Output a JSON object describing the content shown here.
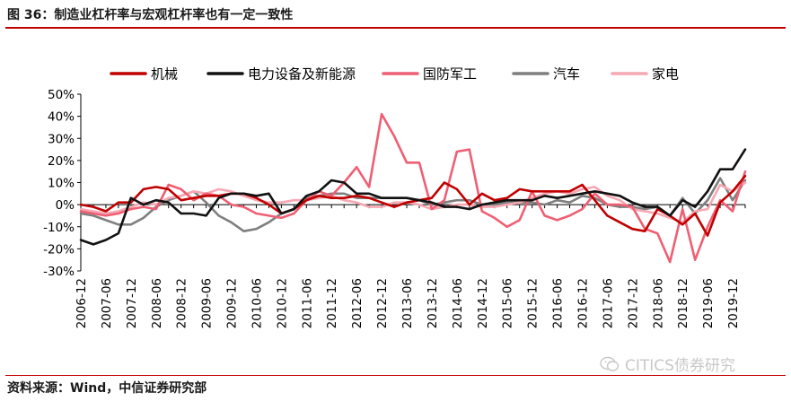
{
  "header": {
    "figure_title": "图 36：制造业杠杆率与宏观杠杆率也有一定一致性"
  },
  "footer": {
    "source": "资料来源：Wind，中信证券研究部",
    "watermark": "CITICS债券研究"
  },
  "colors": {
    "accent": "#c00000",
    "jixie": "#c00000",
    "dianli": "#111111",
    "guofang": "#ef5f73",
    "qiche": "#7f7f7f",
    "jiadian": "#f6a8b3"
  },
  "chart_data": {
    "type": "line",
    "ylim": [
      -30,
      50
    ],
    "y_ticks": [
      -30,
      -20,
      -10,
      0,
      10,
      20,
      30,
      40,
      50
    ],
    "y_tick_labels": [
      "-30%",
      "-20%",
      "-10%",
      "0%",
      "10%",
      "20%",
      "30%",
      "40%",
      "50%"
    ],
    "x_tick_labels": [
      "2006-12",
      "2007-06",
      "2007-12",
      "2008-06",
      "2008-12",
      "2009-06",
      "2009-12",
      "2010-06",
      "2010-12",
      "2011-06",
      "2011-12",
      "2012-06",
      "2012-12",
      "2013-06",
      "2013-12",
      "2014-06",
      "2014-12",
      "2015-06",
      "2015-12",
      "2016-06",
      "2016-12",
      "2017-06",
      "2017-12",
      "2018-06",
      "2018-12",
      "2019-06",
      "2019-12"
    ],
    "x": [
      "2006-12",
      "2007-03",
      "2007-06",
      "2007-09",
      "2007-12",
      "2008-03",
      "2008-06",
      "2008-09",
      "2008-12",
      "2009-03",
      "2009-06",
      "2009-09",
      "2009-12",
      "2010-03",
      "2010-06",
      "2010-09",
      "2010-12",
      "2011-03",
      "2011-06",
      "2011-09",
      "2011-12",
      "2012-03",
      "2012-06",
      "2012-09",
      "2012-12",
      "2013-03",
      "2013-06",
      "2013-09",
      "2013-12",
      "2014-03",
      "2014-06",
      "2014-09",
      "2014-12",
      "2015-03",
      "2015-06",
      "2015-09",
      "2015-12",
      "2016-03",
      "2016-06",
      "2016-09",
      "2016-12",
      "2017-03",
      "2017-06",
      "2017-09",
      "2017-12",
      "2018-03",
      "2018-06",
      "2018-09",
      "2018-12",
      "2019-03",
      "2019-06",
      "2019-09",
      "2019-12",
      "2020-03"
    ],
    "legend_position": "top",
    "grid": false,
    "series": [
      {
        "name": "机械",
        "color_key": "jixie",
        "values": [
          0,
          -1,
          -3,
          1,
          1,
          7,
          8,
          7,
          2,
          3,
          4,
          4,
          5,
          5,
          3,
          0,
          -4,
          -2,
          2,
          4,
          3,
          3,
          4,
          3,
          1,
          -1,
          1,
          2,
          3,
          10,
          7,
          0,
          5,
          2,
          3,
          7,
          6,
          6,
          6,
          6,
          9,
          2,
          -5,
          -8,
          -11,
          -12,
          -2,
          -5,
          -9,
          -4,
          -14,
          1,
          6,
          13
        ]
      },
      {
        "name": "电力设备及新能源",
        "color_key": "dianli",
        "values": [
          -16,
          -18,
          -16,
          -13,
          3,
          0,
          2,
          1,
          -4,
          -4,
          -5,
          3,
          5,
          5,
          4,
          5,
          -4,
          -2,
          4,
          6,
          11,
          10,
          5,
          5,
          3,
          3,
          3,
          2,
          1,
          -1,
          -1,
          -2,
          0,
          1,
          2,
          2,
          2,
          4,
          3,
          4,
          5,
          6,
          5,
          4,
          1,
          -1,
          -1,
          -5,
          2,
          -1,
          6,
          16,
          16,
          25
        ]
      },
      {
        "name": "国防军工",
        "color_key": "guofang",
        "values": [
          -3,
          -4,
          -5,
          -4,
          -2,
          -1,
          -2,
          9,
          7,
          2,
          5,
          4,
          0,
          -1,
          -4,
          -5,
          -6,
          -4,
          2,
          6,
          4,
          10,
          17,
          8,
          41,
          31,
          19,
          19,
          -2,
          2,
          24,
          25,
          -3,
          -6,
          -10,
          -7,
          6,
          -5,
          -7,
          -5,
          -2,
          5,
          0,
          0,
          -1,
          -11,
          -13,
          -26,
          -2,
          -25,
          -10,
          2,
          -3,
          15
        ]
      },
      {
        "name": "汽车",
        "color_key": "qiche",
        "values": [
          -4,
          -5,
          -7,
          -9,
          -9,
          -6,
          -1,
          2,
          4,
          6,
          1,
          -5,
          -8,
          -12,
          -11,
          -8,
          -4,
          -2,
          3,
          4,
          5,
          5,
          3,
          3,
          3,
          3,
          3,
          2,
          0,
          1,
          2,
          2,
          0,
          0,
          1,
          1,
          1,
          0,
          2,
          1,
          4,
          3,
          0,
          -1,
          -1,
          -2,
          -1,
          -5,
          3,
          -4,
          2,
          12,
          2,
          11
        ]
      },
      {
        "name": "家电",
        "color_key": "jiadian",
        "values": [
          -2,
          -3,
          -4,
          -3,
          -1,
          1,
          0,
          3,
          4,
          6,
          5,
          7,
          6,
          4,
          2,
          1,
          1,
          2,
          2,
          3,
          4,
          2,
          1,
          -1,
          -1,
          1,
          1,
          0,
          -2,
          -1,
          0,
          0,
          -1,
          -1,
          0,
          1,
          3,
          5,
          6,
          5,
          7,
          8,
          4,
          2,
          -2,
          -3,
          -4,
          -6,
          -8,
          -3,
          -2,
          9,
          6,
          10
        ]
      }
    ]
  }
}
